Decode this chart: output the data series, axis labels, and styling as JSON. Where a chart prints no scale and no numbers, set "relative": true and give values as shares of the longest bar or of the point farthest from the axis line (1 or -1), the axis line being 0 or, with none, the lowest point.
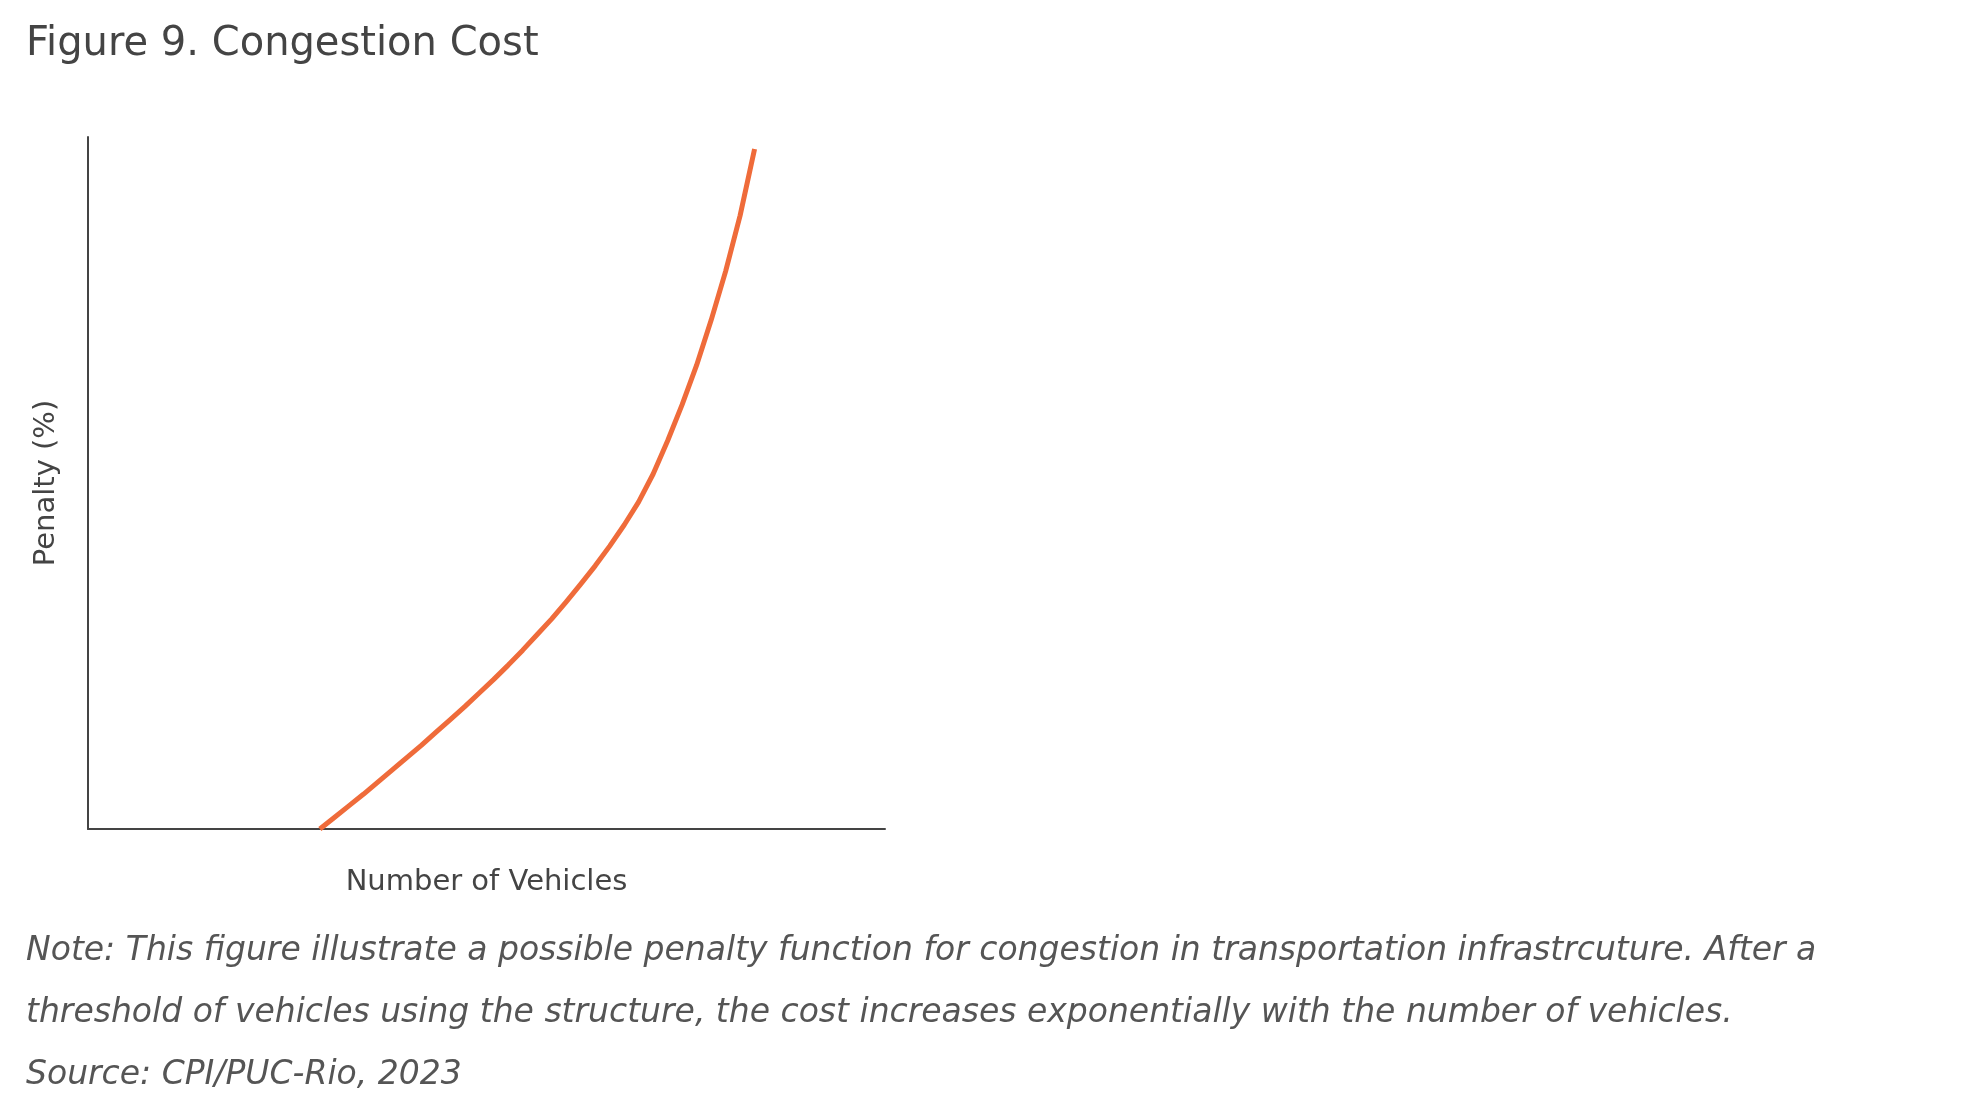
{
  "chart_data": {
    "type": "line",
    "title": "Figure 9. Congestion Cost",
    "xlabel": "Number of Vehicles",
    "ylabel": "Penalty (%)",
    "relative": true,
    "grid": false,
    "marker": "none",
    "line_style": "solid",
    "categories": [
      null,
      null,
      null,
      null,
      null,
      null,
      null,
      null,
      null,
      null,
      null,
      null,
      null,
      null,
      null,
      null,
      null,
      null,
      null,
      null,
      null,
      null,
      null,
      null,
      null,
      null,
      null,
      null,
      null,
      null,
      null,
      null,
      null,
      null,
      null,
      null,
      null,
      null,
      null,
      null,
      null,
      null,
      null,
      null,
      null,
      null,
      null,
      null,
      null,
      null,
      null,
      null,
      null,
      null,
      null,
      null
    ],
    "series": [
      {
        "color": "#ef6b3a",
        "values": [
          null,
          null,
          null,
          null,
          null,
          null,
          null,
          null,
          null,
          null,
          null,
          null,
          null,
          null,
          null,
          null,
          0,
          0.017,
          0.034,
          0.051,
          0.069,
          0.087,
          0.105,
          0.123,
          0.142,
          0.161,
          0.18,
          0.2,
          0.22,
          0.241,
          0.263,
          0.286,
          0.309,
          0.334,
          0.36,
          0.387,
          0.416,
          0.447,
          0.481,
          0.522,
          0.571,
          0.624,
          0.682,
          0.748,
          0.82,
          0.902,
          1,
          null,
          null,
          null,
          null,
          null,
          null,
          null,
          null,
          null
        ]
      }
    ],
    "annotations": [
      "Note: This figure illustrate a possible penalty function for congestion in transportation infrastrcuture. After a threshold of vehicles using the structure, the cost increases exponentially with the number of vehicles.",
      "Source: CPI/PUC-Rio, 2023"
    ]
  }
}
